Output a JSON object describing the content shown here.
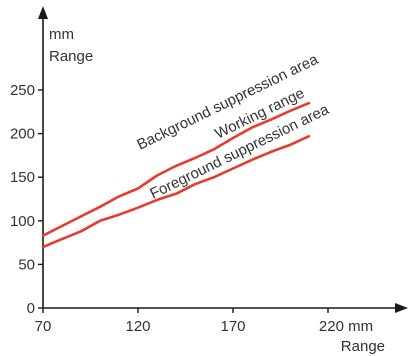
{
  "chart_data": {
    "type": "line",
    "y_unit": "mm",
    "ylabel": "Range",
    "x_ticks": [
      "70",
      "120",
      "170",
      "220 mm"
    ],
    "x_tick_values": [
      70,
      120,
      170,
      220
    ],
    "xlabel": "Range",
    "y_ticks": [
      "0",
      "50",
      "100",
      "150",
      "200",
      "250"
    ],
    "y_tick_values": [
      0,
      50,
      100,
      150,
      200,
      250
    ],
    "xlim": [
      70,
      225
    ],
    "ylim": [
      0,
      260
    ],
    "grid": false,
    "series": [
      {
        "color": "#e63b2e",
        "x": [
          70,
          80,
          90,
          100,
          110,
          120,
          130,
          140,
          150,
          160,
          170,
          180,
          190,
          200,
          210
        ],
        "y": [
          83,
          94,
          105,
          116,
          128,
          137,
          152,
          163,
          172,
          182,
          195,
          207,
          216,
          226,
          235
        ]
      },
      {
        "color": "#e63b2e",
        "x": [
          70,
          80,
          90,
          100,
          110,
          120,
          130,
          140,
          150,
          160,
          170,
          180,
          190,
          200,
          210
        ],
        "y": [
          70,
          79,
          88,
          100,
          107,
          115,
          124,
          131,
          142,
          150,
          160,
          170,
          179,
          187,
          197
        ]
      }
    ],
    "annotations": [
      {
        "text": "Background suppression area"
      },
      {
        "text": "Working range"
      },
      {
        "text": "Foreground suppression area"
      }
    ]
  }
}
